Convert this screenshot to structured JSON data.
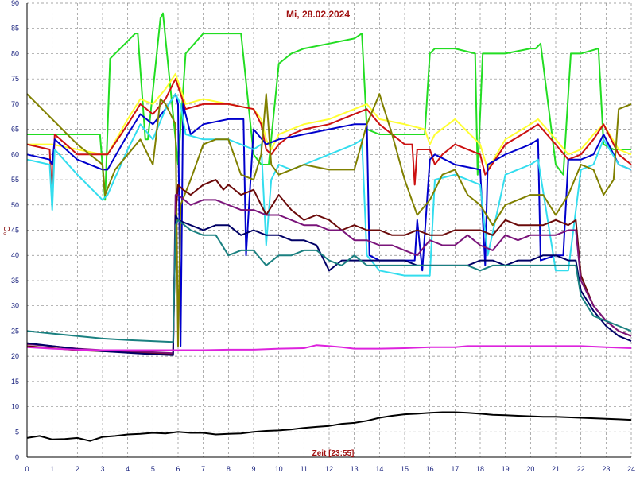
{
  "chart_data": {
    "type": "line",
    "title": "Mi, 28.02.2024",
    "xlabel": "Zeit [23:55]",
    "ylabel": "°C",
    "xlim": [
      0,
      24
    ],
    "ylim": [
      0,
      90
    ],
    "x_ticks": [
      0,
      1,
      2,
      3,
      4,
      5,
      6,
      7,
      8,
      9,
      10,
      11,
      12,
      13,
      14,
      15,
      16,
      17,
      18,
      19,
      20,
      21,
      22,
      23,
      24
    ],
    "y_ticks": [
      0,
      5,
      10,
      15,
      20,
      25,
      30,
      35,
      40,
      45,
      50,
      55,
      60,
      65,
      70,
      75,
      80,
      85,
      90
    ],
    "grid": true,
    "series": [
      {
        "color": "#22dd22",
        "x": [
          0,
          1,
          2,
          2.9,
          3.1,
          3.3,
          4.3,
          4.4,
          4.7,
          4.8,
          5.3,
          5.4,
          6.0,
          6.3,
          7.0,
          7.5,
          8.0,
          8.5,
          9.0,
          9.3,
          9.6,
          10.0,
          10.5,
          11,
          12,
          13,
          13.3,
          13.5,
          14,
          14.5,
          15,
          15.4,
          15.8,
          16.0,
          16.2,
          17,
          17.8,
          17.9,
          18.1,
          18.3,
          19,
          20,
          20.2,
          20.4,
          21.0,
          21.3,
          21.6,
          22.0,
          22.7,
          22.9,
          23.3,
          24
        ],
        "y": [
          64,
          64,
          64,
          64,
          51,
          79,
          84,
          84,
          63,
          63,
          87,
          88,
          58,
          80,
          84,
          84,
          84,
          84,
          60,
          58,
          58,
          78,
          80,
          81,
          82,
          83,
          84,
          65,
          64,
          64,
          64,
          64,
          64,
          80,
          81,
          81,
          80,
          56,
          80,
          80,
          80,
          81,
          81,
          82,
          58,
          56,
          80,
          80,
          81,
          62,
          61,
          61
        ]
      },
      {
        "color": "#ffff33",
        "x": [
          0,
          1,
          2,
          3,
          3.2,
          4,
          4.5,
          5,
          5.5,
          5.9,
          6.1,
          6.3,
          7,
          8,
          9,
          9.3,
          9.5,
          9.7,
          10,
          10.5,
          11,
          12,
          13,
          13.5,
          14,
          15,
          15.8,
          16,
          16.2,
          17,
          18,
          18.3,
          19,
          20,
          20.3,
          21,
          21.5,
          22,
          22.5,
          22.9,
          23.5,
          24
        ],
        "y": [
          62,
          62,
          61,
          60,
          60,
          67,
          71,
          70,
          73,
          76,
          73,
          70,
          71,
          70,
          69,
          67,
          63,
          61,
          64,
          65,
          66,
          67,
          69,
          70,
          67,
          66,
          65,
          62,
          64,
          67,
          62,
          57,
          63,
          66,
          67,
          63,
          60,
          61,
          64,
          66,
          61,
          60
        ]
      },
      {
        "color": "#cc1111",
        "x": [
          0,
          0.9,
          1.0,
          1.1,
          2,
          3,
          3.2,
          4,
          4.5,
          5,
          5.5,
          5.9,
          6.1,
          6.3,
          7,
          8,
          9,
          9.3,
          9.5,
          9.7,
          10,
          10.5,
          11,
          12,
          13,
          13.5,
          14,
          14.5,
          15,
          15.3,
          15.4,
          15.5,
          16,
          16.2,
          16.5,
          17,
          18,
          18.2,
          19,
          20,
          20.3,
          21,
          21.5,
          22,
          22.5,
          22.9,
          23.5,
          24
        ],
        "y": [
          62,
          61,
          50,
          64,
          60,
          60,
          60,
          66,
          70,
          68,
          71,
          75,
          72,
          69,
          70,
          70,
          69,
          66,
          61,
          60,
          62,
          64,
          65,
          66,
          68,
          69,
          66,
          64,
          62,
          62,
          54,
          61,
          61,
          58,
          60,
          62,
          60,
          56,
          62,
          65,
          66,
          62,
          59,
          60,
          63,
          66,
          60,
          58
        ]
      },
      {
        "color": "#0000cc",
        "x": [
          0,
          0.9,
          1.0,
          1.1,
          2,
          3,
          3.2,
          4,
          4.5,
          5,
          5.5,
          5.9,
          6.0,
          6.1,
          6.2,
          6.5,
          7,
          8,
          8.6,
          8.7,
          9,
          9.5,
          10,
          11,
          12,
          13,
          13.5,
          13.6,
          14,
          15,
          15.4,
          15.5,
          15.7,
          16,
          16.2,
          17,
          18,
          18.2,
          18.3,
          19,
          20,
          20.3,
          20.4,
          21,
          21.3,
          21.5,
          22,
          22.5,
          22.9,
          23.5,
          24
        ],
        "y": [
          60,
          59,
          58,
          63,
          59,
          57,
          57,
          64,
          68,
          66,
          69,
          72,
          70,
          22,
          70,
          64,
          66,
          67,
          67,
          40,
          65,
          62,
          63,
          64,
          65,
          66,
          66,
          40,
          39,
          39,
          39,
          47,
          37,
          59,
          60,
          58,
          57,
          38,
          58,
          60,
          62,
          63,
          39,
          40,
          40,
          59,
          59,
          60,
          64,
          58,
          57
        ]
      },
      {
        "color": "#33ddee",
        "x": [
          0,
          0.9,
          1.0,
          1.1,
          2,
          3,
          3.2,
          4,
          4.5,
          5,
          5.5,
          5.9,
          6.1,
          6.3,
          7,
          8,
          9,
          9.3,
          9.5,
          9.7,
          10,
          10.5,
          11,
          12,
          13,
          13.3,
          13.5,
          14,
          15,
          15.5,
          16,
          16.2,
          17,
          18,
          18.3,
          19,
          20,
          20.3,
          21,
          21.5,
          22,
          22.5,
          22.9,
          23.5,
          24
        ],
        "y": [
          59,
          58,
          49,
          61,
          56,
          51,
          52,
          61,
          66,
          63,
          69,
          72,
          70,
          64,
          63,
          63,
          61,
          62,
          42,
          55,
          58,
          57,
          58,
          60,
          62,
          63,
          40,
          37,
          36,
          36,
          36,
          55,
          56,
          54,
          40,
          56,
          58,
          59,
          37,
          37,
          57,
          58,
          63,
          58,
          57
        ]
      },
      {
        "color": "#808000",
        "x": [
          0,
          1,
          2,
          3,
          3.1,
          3.5,
          4,
          4.5,
          5,
          5.3,
          5.5,
          5.9,
          6.0,
          6.1,
          6.5,
          7,
          7.5,
          8,
          8.5,
          9,
          9.3,
          9.5,
          9.7,
          10,
          10.5,
          11,
          12,
          13,
          13.5,
          14,
          14.5,
          15,
          15.5,
          16,
          16.5,
          17,
          17.5,
          18,
          18.5,
          19,
          19.5,
          20,
          20.5,
          21,
          21.5,
          22,
          22.5,
          22.9,
          23.3,
          23.5,
          24
        ],
        "y": [
          72,
          67,
          62,
          58,
          52,
          57,
          60,
          63,
          58,
          71,
          70,
          66,
          22,
          50,
          55,
          62,
          63,
          63,
          56,
          55,
          60,
          72,
          58,
          56,
          57,
          58,
          57,
          57,
          66,
          72,
          64,
          55,
          48,
          51,
          56,
          57,
          52,
          50,
          46,
          50,
          51,
          52,
          52,
          48,
          52,
          58,
          57,
          52,
          55,
          69,
          70
        ]
      },
      {
        "color": "#6b0a0a",
        "x": [
          0,
          1,
          2,
          3,
          4,
          5,
          5.8,
          5.9,
          6.0,
          6.2,
          6.5,
          7,
          7.5,
          7.8,
          8,
          8.5,
          9,
          9.5,
          10,
          10.5,
          11,
          11.5,
          12,
          12.5,
          13,
          13.5,
          14,
          14.5,
          15,
          15.5,
          16,
          16.5,
          17,
          17.5,
          18,
          18.5,
          19,
          19.5,
          20,
          20.5,
          21,
          21.5,
          21.8,
          22,
          22.5,
          23,
          23.5,
          24
        ],
        "y": [
          22,
          21.6,
          21.2,
          21,
          20.8,
          20.6,
          20.4,
          48,
          54,
          53,
          52,
          54,
          55,
          53,
          54,
          52,
          53,
          48,
          52,
          49,
          47,
          48,
          47,
          45,
          46,
          45,
          45,
          44,
          44,
          45,
          44,
          44,
          45,
          45,
          45,
          44,
          47,
          46,
          46,
          46,
          47,
          46,
          47,
          36,
          30,
          27,
          25,
          24
        ]
      },
      {
        "color": "#7a147a",
        "x": [
          0,
          1,
          2,
          3,
          4,
          5,
          5.8,
          5.9,
          6.0,
          6.5,
          7,
          7.5,
          8,
          8.5,
          9,
          9.5,
          10,
          10.5,
          11,
          11.5,
          12,
          12.5,
          13,
          13.5,
          14,
          14.5,
          15,
          15.5,
          16,
          16.5,
          17,
          17.5,
          18,
          18.5,
          19,
          19.5,
          20,
          20.5,
          21,
          21.5,
          21.8,
          22,
          22.5,
          23,
          23.5,
          24
        ],
        "y": [
          22.4,
          22,
          21.5,
          21.2,
          21,
          20.8,
          20.6,
          52,
          52,
          50,
          51,
          51,
          50,
          49,
          49,
          48,
          48,
          47,
          46,
          46,
          45,
          45,
          43,
          43,
          42,
          42,
          41,
          40,
          43,
          42,
          42,
          44,
          42,
          41,
          44,
          43,
          44,
          44,
          44,
          45,
          45,
          35,
          30,
          27,
          25,
          24
        ]
      },
      {
        "color": "#000066",
        "x": [
          0,
          1,
          2,
          3,
          4,
          5,
          5.8,
          5.9,
          6.0,
          6.5,
          7,
          7.5,
          8,
          8.5,
          9,
          9.5,
          10,
          10.5,
          11,
          11.5,
          12,
          12.5,
          13,
          13.5,
          14,
          14.5,
          15,
          15.5,
          16,
          16.5,
          17,
          17.5,
          18,
          18.5,
          19,
          19.5,
          20,
          20.5,
          21,
          21.5,
          21.8,
          22,
          22.5,
          23,
          23.5,
          24
        ],
        "y": [
          22.6,
          22,
          21.4,
          21,
          20.7,
          20.4,
          20.2,
          48,
          47,
          46,
          45,
          46,
          46,
          44,
          45,
          44,
          44,
          43,
          43,
          42,
          37,
          39,
          39,
          39,
          39,
          39,
          39,
          38,
          38,
          38,
          38,
          38,
          39,
          39,
          38,
          39,
          39,
          40,
          40,
          39,
          39,
          33,
          29,
          26,
          24,
          23
        ]
      },
      {
        "color": "#1a8080",
        "x": [
          0,
          1,
          2,
          3,
          4,
          5,
          5.8,
          5.9,
          6.0,
          6.5,
          7,
          7.5,
          8,
          8.5,
          9,
          9.5,
          10,
          10.5,
          11,
          11.5,
          12,
          12.5,
          13,
          13.5,
          14,
          14.5,
          15,
          15.5,
          16,
          16.5,
          17,
          17.5,
          18,
          18.5,
          19,
          19.5,
          20,
          20.5,
          21,
          21.5,
          21.8,
          22,
          22.5,
          23,
          23.5,
          24
        ],
        "y": [
          25,
          24.5,
          24,
          23.5,
          23.2,
          23,
          22.8,
          46,
          47,
          45,
          44,
          44,
          40,
          41,
          41,
          38,
          40,
          40,
          41,
          41,
          39,
          38,
          40,
          38,
          38,
          38,
          38,
          38,
          38,
          38,
          38,
          38,
          37,
          38,
          38,
          38,
          38,
          38,
          38,
          38,
          38,
          32,
          28,
          27,
          26,
          25
        ]
      },
      {
        "color": "#dd22dd",
        "x": [
          0,
          1,
          2,
          3,
          4,
          5,
          6,
          7,
          8,
          9,
          10,
          11,
          11.5,
          12,
          12.5,
          13,
          14,
          15,
          16,
          17,
          17.5,
          18,
          19,
          20,
          21,
          22,
          23,
          24
        ],
        "y": [
          21.8,
          21.5,
          21.3,
          21.2,
          21.2,
          21.2,
          21.2,
          21.2,
          21.3,
          21.3,
          21.5,
          21.6,
          22.2,
          22.0,
          21.8,
          21.5,
          21.5,
          21.6,
          21.8,
          21.8,
          22.0,
          22.0,
          22.0,
          22.0,
          22.0,
          22.0,
          21.8,
          21.6
        ]
      },
      {
        "color": "#000000",
        "x": [
          0,
          0.5,
          1,
          1.5,
          2,
          2.5,
          3,
          3.5,
          4,
          4.5,
          5,
          5.5,
          6,
          6.5,
          7,
          7.5,
          8,
          8.5,
          9,
          9.5,
          10,
          10.5,
          11,
          11.5,
          12,
          12.5,
          13,
          13.5,
          14,
          14.5,
          15,
          15.5,
          16,
          16.5,
          17,
          17.5,
          18,
          18.5,
          19,
          19.5,
          20,
          20.5,
          21,
          21.5,
          22,
          22.5,
          23,
          23.5,
          24
        ],
        "y": [
          3.8,
          4.2,
          3.5,
          3.6,
          3.8,
          3.2,
          4.0,
          4.2,
          4.5,
          4.6,
          4.8,
          4.7,
          5.0,
          4.8,
          4.8,
          4.5,
          4.6,
          4.7,
          5.0,
          5.2,
          5.3,
          5.5,
          5.8,
          6.0,
          6.2,
          6.6,
          6.8,
          7.2,
          7.8,
          8.2,
          8.5,
          8.6,
          8.8,
          8.9,
          8.9,
          8.8,
          8.6,
          8.4,
          8.3,
          8.2,
          8.1,
          8.0,
          8.0,
          7.9,
          7.8,
          7.7,
          7.6,
          7.5,
          7.4
        ]
      }
    ]
  }
}
